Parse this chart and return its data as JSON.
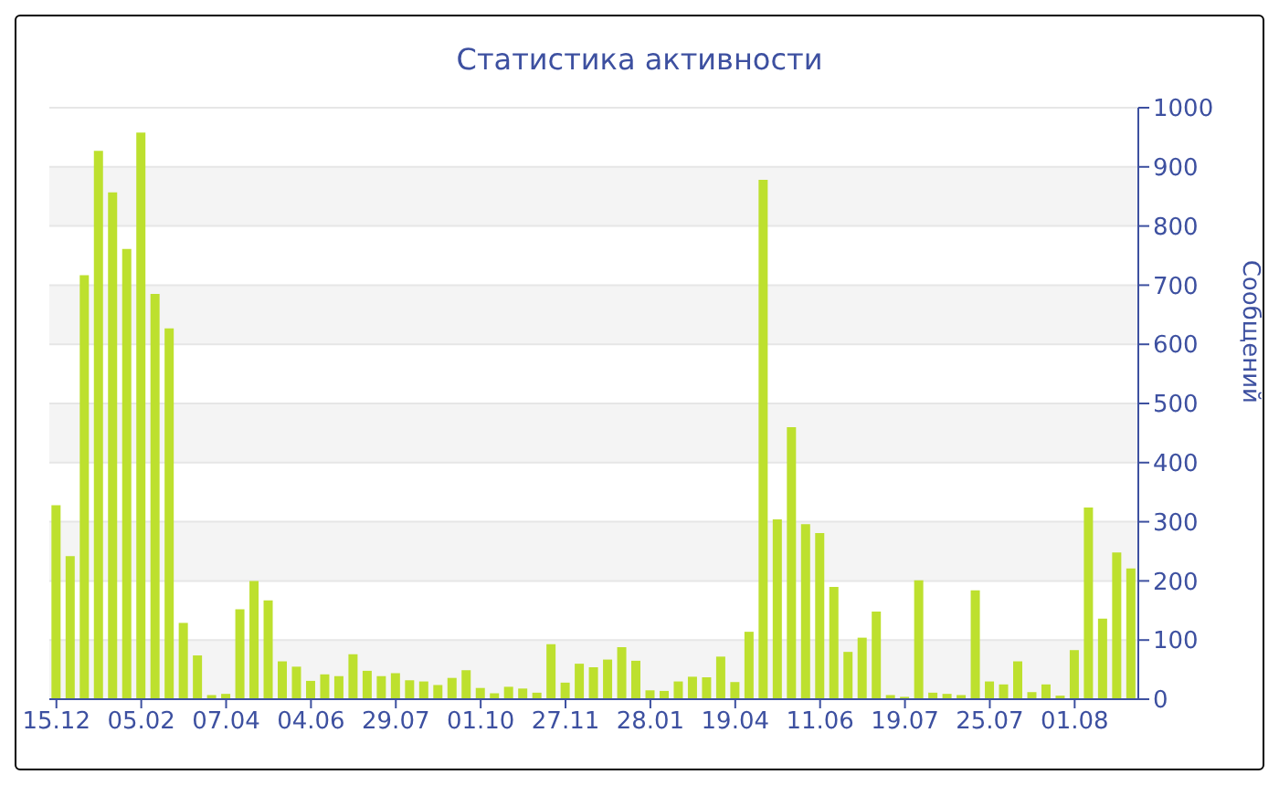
{
  "chart_data": {
    "type": "bar",
    "title": "Статистика активности",
    "ylabel": "Сообщений",
    "categories": [
      "15.12",
      null,
      null,
      null,
      null,
      null,
      "05.02",
      null,
      null,
      null,
      null,
      null,
      "07.04",
      null,
      null,
      null,
      null,
      null,
      "04.06",
      null,
      null,
      null,
      null,
      null,
      "29.07",
      null,
      null,
      null,
      null,
      null,
      "01.10",
      null,
      null,
      null,
      null,
      null,
      "27.11",
      null,
      null,
      null,
      null,
      null,
      "28.01",
      null,
      null,
      null,
      null,
      null,
      "19.04",
      null,
      null,
      null,
      null,
      null,
      "11.06",
      null,
      null,
      null,
      null,
      null,
      "19.07",
      null,
      null,
      null,
      null,
      null,
      "25.07",
      null,
      null,
      null,
      null,
      null,
      "01.08",
      null,
      null,
      null,
      null
    ],
    "values": [
      328,
      242,
      717,
      927,
      857,
      761,
      958,
      685,
      627,
      129,
      74,
      7,
      9,
      152,
      200,
      167,
      64,
      55,
      31,
      42,
      39,
      76,
      48,
      39,
      44,
      32,
      30,
      24,
      36,
      49,
      19,
      10,
      21,
      18,
      11,
      93,
      28,
      60,
      54,
      67,
      88,
      65,
      15,
      14,
      30,
      38,
      37,
      72,
      29,
      114,
      878,
      304,
      460,
      296,
      281,
      190,
      80,
      104,
      148,
      7,
      4,
      201,
      11,
      9,
      7,
      184,
      30,
      25,
      64,
      12,
      25,
      6,
      83,
      324,
      136,
      248,
      221
    ],
    "color": "#bde02e",
    "ylim": [
      0,
      1000
    ],
    "yticks": [
      0,
      100,
      200,
      300,
      400,
      500,
      600,
      700,
      800,
      900,
      1000
    ],
    "grid": "y",
    "legend": false
  }
}
